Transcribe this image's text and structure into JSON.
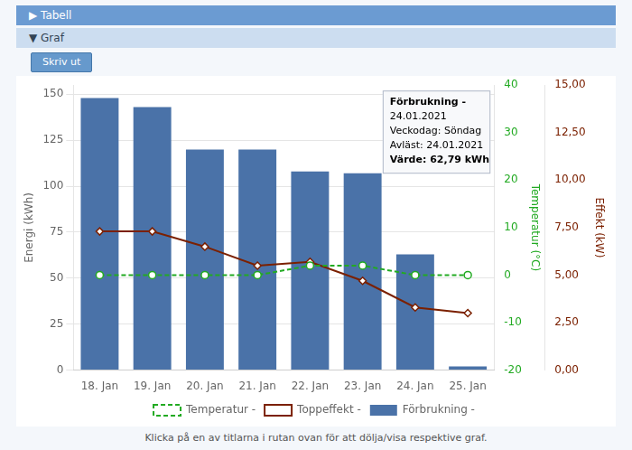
{
  "chart_data": {
    "type": "bar",
    "categories": [
      "18. Jan",
      "19. Jan",
      "20. Jan",
      "21. Jan",
      "22. Jan",
      "23. Jan",
      "24. Jan",
      "25. Jan"
    ],
    "series": [
      {
        "name": "Temperatur -",
        "type": "line",
        "color": "#22aa22",
        "line_style": "dashed",
        "marker": "circle",
        "axis": "y2",
        "values": [
          0,
          0,
          0,
          0,
          2,
          2,
          0,
          0
        ]
      },
      {
        "name": "Förbrukning -",
        "type": "bar",
        "color": "#4a72a8",
        "values": [
          148,
          143,
          120,
          120,
          108,
          107,
          63,
          2
        ]
      },
      {
        "name": "Toppeffekt -",
        "type": "line",
        "color": "#7b2000",
        "line_style": "solid",
        "marker": "diamond",
        "axis": "y3",
        "values": [
          7.3,
          7.3,
          6.5,
          5.5,
          5.7,
          4.7,
          3.3,
          3.0
        ]
      }
    ],
    "ylabel": "Energi (kWh)",
    "y2label": "Temperatur (°C)",
    "y3label": "Effekt (kW)",
    "ylim": [
      0,
      155
    ],
    "yticks": [
      0,
      25,
      50,
      75,
      100,
      125,
      150
    ],
    "y2lim": [
      -20,
      40
    ],
    "y2ticks": [
      -20,
      -10,
      0,
      10,
      20,
      30,
      40
    ],
    "y3lim": [
      0.0,
      15.0
    ],
    "y3ticks": [
      {
        "value": 0.0,
        "label": "0,00"
      },
      {
        "value": 2.5,
        "label": "2,50"
      },
      {
        "value": 5.0,
        "label": "5,00"
      },
      {
        "value": 7.5,
        "label": "7,50"
      },
      {
        "value": 10.0,
        "label": "10,00"
      },
      {
        "value": 12.5,
        "label": "12,50"
      },
      {
        "value": 15.0,
        "label": "15,00"
      }
    ],
    "grid": true,
    "legend": "bottom",
    "annotations": [
      "▶ Tabell",
      "▼ Graf",
      "Skriv ut",
      "Förbrukning -",
      "24.01.2021",
      "Veckodag: Söndag",
      "Avläst: 24.01.2021",
      "Värde: 62,79 kWh",
      "Klicka på en av titlarna i rutan ovan för att dölja/visa respektive graf."
    ]
  }
}
